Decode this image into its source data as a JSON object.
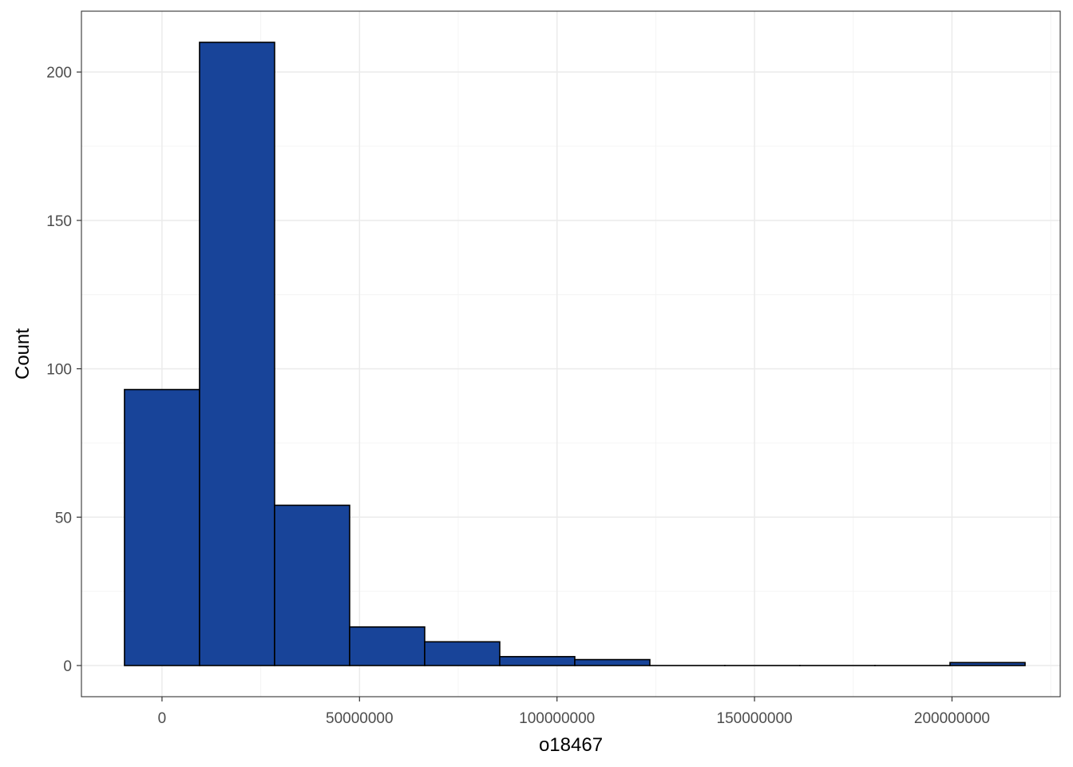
{
  "chart_data": {
    "type": "bar",
    "subtype": "histogram",
    "title": "",
    "xlabel": "o18467",
    "ylabel": "Count",
    "bin_width": 19000000,
    "bins": [
      {
        "x_start": -9500000,
        "x_end": 9500000,
        "count": 93
      },
      {
        "x_start": 9500000,
        "x_end": 28500000,
        "count": 210
      },
      {
        "x_start": 28500000,
        "x_end": 47500000,
        "count": 54
      },
      {
        "x_start": 47500000,
        "x_end": 66500000,
        "count": 13
      },
      {
        "x_start": 66500000,
        "x_end": 85500000,
        "count": 8
      },
      {
        "x_start": 85500000,
        "x_end": 104500000,
        "count": 3
      },
      {
        "x_start": 104500000,
        "x_end": 123500000,
        "count": 2
      },
      {
        "x_start": 123500000,
        "x_end": 142500000,
        "count": 0
      },
      {
        "x_start": 142500000,
        "x_end": 161500000,
        "count": 0
      },
      {
        "x_start": 161500000,
        "x_end": 180500000,
        "count": 0
      },
      {
        "x_start": 180500000,
        "x_end": 199500000,
        "count": 0
      },
      {
        "x_start": 199500000,
        "x_end": 218500000,
        "count": 1
      }
    ],
    "xlim": [
      -20400000,
      227400000
    ],
    "ylim": [
      -10.5,
      220.5
    ],
    "x_ticks": [
      0,
      50000000,
      100000000,
      150000000,
      200000000
    ],
    "x_tick_labels": [
      "0",
      "50000000",
      "100000000",
      "150000000",
      "200000000"
    ],
    "y_ticks": [
      0,
      50,
      100,
      150,
      200
    ],
    "y_tick_labels": [
      "0",
      "50",
      "100",
      "150",
      "200"
    ],
    "grid": true,
    "legend": "none",
    "colors": {
      "bar_fill": "#184499",
      "bar_outline": "#000000",
      "grid_major": "#ebebeb",
      "grid_minor": "#f4f4f4",
      "panel_border": "#333333",
      "tick_text": "#4d4d4d"
    }
  }
}
